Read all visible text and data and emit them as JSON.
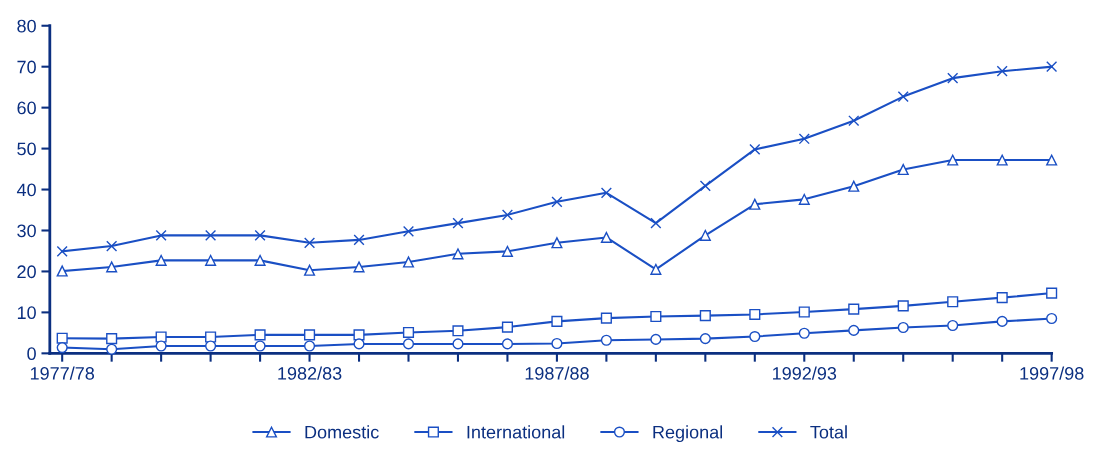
{
  "chart_data": {
    "type": "line",
    "categories": [
      "1977/78",
      null,
      null,
      null,
      null,
      "1982/83",
      null,
      null,
      null,
      null,
      "1987/88",
      null,
      null,
      null,
      null,
      "1992/93",
      null,
      null,
      null,
      null,
      "1997/98"
    ],
    "series": [
      {
        "name": "Domestic",
        "color": "#1a4fc4",
        "marker": "triangle",
        "values": [
          20.1,
          21.1,
          22.7,
          22.7,
          22.7,
          20.3,
          21.1,
          22.3,
          24.3,
          24.9,
          27.0,
          28.3,
          20.5,
          28.8,
          36.4,
          37.6,
          40.8,
          44.9,
          47.2,
          47.2,
          47.2
        ]
      },
      {
        "name": "International",
        "color": "#1a4fc4",
        "marker": "square",
        "values": [
          3.7,
          3.6,
          4.0,
          4.0,
          4.5,
          4.5,
          4.5,
          5.1,
          5.5,
          6.4,
          7.8,
          8.6,
          9.0,
          9.2,
          9.5,
          10.1,
          10.8,
          11.6,
          12.6,
          13.6,
          14.7
        ]
      },
      {
        "name": "Regional",
        "color": "#1a4fc4",
        "marker": "circle",
        "values": [
          1.4,
          1.0,
          1.8,
          1.8,
          1.8,
          1.8,
          2.3,
          2.3,
          2.3,
          2.3,
          2.4,
          3.2,
          3.4,
          3.6,
          4.1,
          4.9,
          5.6,
          6.3,
          6.8,
          7.8,
          8.5
        ]
      },
      {
        "name": "Total",
        "color": "#1a4fc4",
        "marker": "cross",
        "values": [
          24.9,
          26.2,
          28.8,
          28.8,
          28.8,
          27.0,
          27.7,
          29.8,
          31.8,
          33.8,
          37.0,
          39.2,
          31.8,
          40.9,
          49.8,
          52.4,
          56.8,
          62.7,
          67.2,
          68.9,
          70.0
        ]
      }
    ],
    "ylim": [
      0,
      80
    ],
    "yticks": [
      0,
      10,
      20,
      30,
      40,
      50,
      60,
      70,
      80
    ],
    "grid": false,
    "legend": "bottom",
    "line_style": "solid"
  }
}
